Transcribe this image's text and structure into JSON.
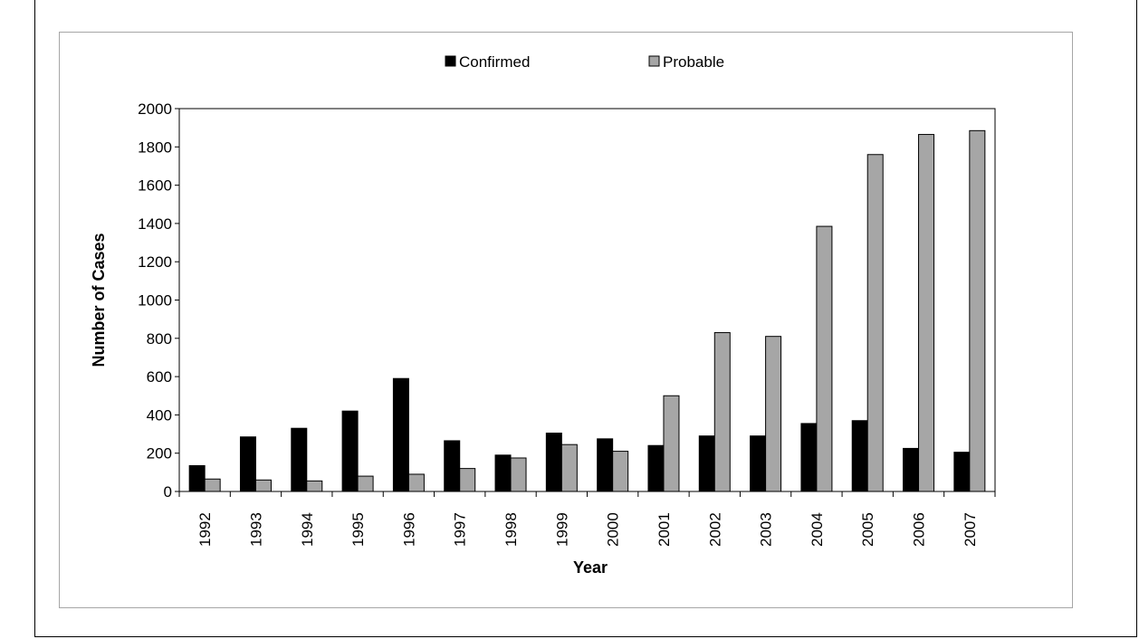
{
  "chart_data": {
    "type": "bar",
    "categories": [
      "1992",
      "1993",
      "1994",
      "1995",
      "1996",
      "1997",
      "1998",
      "1999",
      "2000",
      "2001",
      "2002",
      "2003",
      "2004",
      "2005",
      "2006",
      "2007"
    ],
    "series": [
      {
        "name": "Confirmed",
        "color": "#000000",
        "values": [
          135,
          285,
          330,
          420,
          590,
          265,
          190,
          305,
          275,
          240,
          290,
          290,
          355,
          370,
          225,
          205
        ]
      },
      {
        "name": "Probable",
        "color": "#a6a6a6",
        "values": [
          65,
          60,
          55,
          80,
          90,
          120,
          175,
          245,
          210,
          500,
          830,
          810,
          1385,
          1760,
          1865,
          1885
        ]
      }
    ],
    "xlabel": "Year",
    "ylabel": "Number of Cases",
    "ylim": [
      0,
      2000
    ],
    "yticks": [
      0,
      200,
      400,
      600,
      800,
      1000,
      1200,
      1400,
      1600,
      1800,
      2000
    ],
    "grid": false,
    "legend_position": "top-center"
  }
}
